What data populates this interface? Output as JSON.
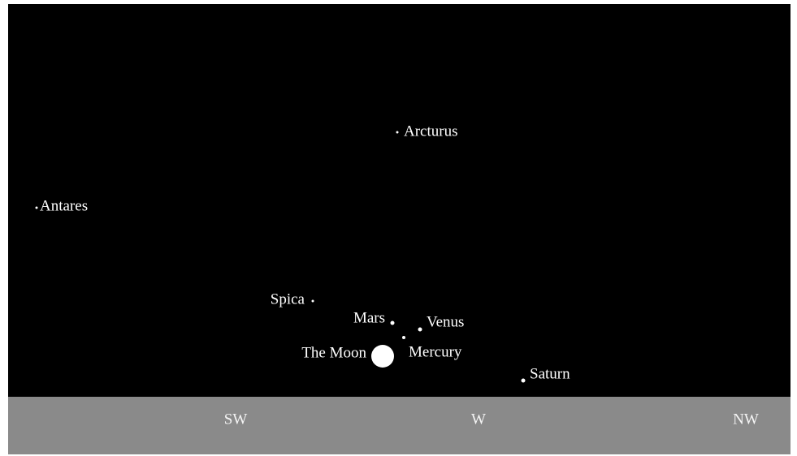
{
  "objects": [
    {
      "label": "Arcturus"
    },
    {
      "label": "Antares"
    },
    {
      "label": "Spica"
    },
    {
      "label": "Mars"
    },
    {
      "label": "Venus"
    },
    {
      "label": "Mercury"
    },
    {
      "label": "The Moon"
    },
    {
      "label": "Saturn"
    }
  ],
  "directions": [
    "SW",
    "W",
    "NW"
  ]
}
